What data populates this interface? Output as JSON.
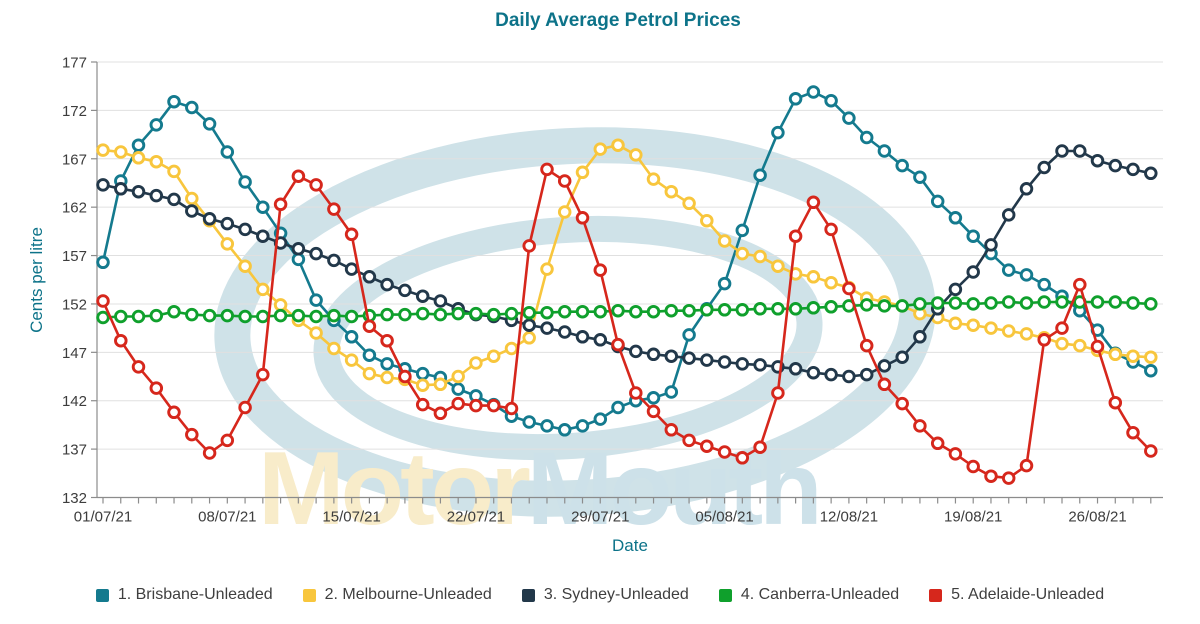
{
  "title": "Daily Average Petrol Prices",
  "watermark": {
    "part1": "Motor",
    "part2": "Mouth",
    "part1_color": "#f8ecca",
    "part2_color": "#cde1e9",
    "swoosh_color": "#cfe2e8"
  },
  "colors": {
    "title_teal": "#0d7389",
    "axis_line": "#8c8c8c",
    "gridline": "#e0e0e0",
    "tick_label": "#3d3d3d",
    "legend_text": "#3f3f3f",
    "background": "#ffffff"
  },
  "chart_data": {
    "type": "line",
    "title": "Daily Average Petrol Prices",
    "xlabel": "Date",
    "ylabel": "Cents per litre",
    "ylim": [
      132,
      177
    ],
    "y_tick_labels": [
      132,
      137,
      142,
      147,
      152,
      157,
      162,
      167,
      172,
      177
    ],
    "grid": "horizontal",
    "legend_position": "bottom",
    "marker": "open-circle",
    "x_start_date": "01/07/21",
    "x_end_date": "29/08/21",
    "x_interval": "daily",
    "num_points": 60,
    "x_tick_days": [
      0,
      7,
      14,
      21,
      28,
      35,
      42,
      49,
      56
    ],
    "x_tick_labels": [
      "01/07/21",
      "08/07/21",
      "15/07/21",
      "22/07/21",
      "29/07/21",
      "05/08/21",
      "12/08/21",
      "19/08/21",
      "26/08/21"
    ],
    "series": [
      {
        "name": "1. Brisbane-Unleaded",
        "color": "#147a8e",
        "values": [
          156.3,
          164.7,
          168.4,
          170.5,
          172.9,
          172.3,
          170.6,
          167.7,
          164.6,
          162.0,
          159.3,
          156.6,
          152.4,
          150.3,
          148.6,
          146.7,
          145.8,
          145.3,
          144.8,
          144.4,
          143.2,
          142.5,
          141.6,
          140.4,
          139.8,
          139.4,
          139.0,
          139.4,
          140.1,
          141.3,
          142.0,
          142.3,
          142.9,
          148.8,
          151.5,
          154.1,
          159.6,
          165.3,
          169.7,
          173.2,
          173.9,
          173.0,
          171.2,
          169.2,
          167.8,
          166.3,
          165.1,
          162.6,
          160.9,
          159.0,
          157.2,
          155.5,
          155.0,
          154.0,
          152.8,
          151.3,
          149.3,
          146.9,
          146.0,
          145.1
        ]
      },
      {
        "name": "2. Melbourne-Unleaded",
        "color": "#f8c63d",
        "values": [
          167.9,
          167.7,
          167.1,
          166.7,
          165.7,
          162.9,
          160.6,
          158.2,
          155.9,
          153.5,
          151.9,
          150.3,
          149.0,
          147.4,
          146.2,
          144.8,
          144.4,
          144.2,
          143.6,
          143.7,
          144.5,
          145.9,
          146.6,
          147.4,
          148.5,
          155.6,
          161.5,
          165.6,
          168.0,
          168.4,
          167.4,
          164.9,
          163.6,
          162.4,
          160.6,
          158.5,
          157.2,
          156.9,
          155.9,
          155.1,
          154.8,
          154.2,
          153.7,
          152.6,
          152.2,
          151.8,
          151.0,
          150.6,
          150.0,
          149.8,
          149.5,
          149.2,
          148.9,
          148.5,
          147.9,
          147.7,
          147.2,
          146.8,
          146.6,
          146.5
        ]
      },
      {
        "name": "3. Sydney-Unleaded",
        "color": "#22384a",
        "values": [
          164.3,
          163.9,
          163.6,
          163.2,
          162.8,
          161.6,
          160.8,
          160.3,
          159.7,
          159.0,
          158.3,
          157.7,
          157.2,
          156.5,
          155.6,
          154.8,
          154.0,
          153.4,
          152.8,
          152.3,
          151.5,
          150.9,
          150.7,
          150.3,
          149.8,
          149.5,
          149.1,
          148.6,
          148.3,
          147.6,
          147.1,
          146.8,
          146.6,
          146.4,
          146.2,
          146.0,
          145.8,
          145.7,
          145.5,
          145.3,
          144.9,
          144.7,
          144.5,
          144.7,
          145.6,
          146.5,
          148.6,
          151.5,
          153.5,
          155.3,
          158.1,
          161.2,
          163.9,
          166.1,
          167.8,
          167.8,
          166.8,
          166.3,
          165.9,
          165.5
        ]
      },
      {
        "name": "4. Canberra-Unleaded",
        "color": "#0fa02c",
        "values": [
          150.6,
          150.7,
          150.7,
          150.8,
          151.2,
          150.9,
          150.8,
          150.8,
          150.7,
          150.7,
          150.8,
          150.8,
          150.7,
          150.8,
          150.7,
          150.8,
          150.9,
          150.9,
          151.0,
          150.9,
          151.0,
          151.0,
          150.9,
          151.0,
          151.1,
          151.1,
          151.2,
          151.2,
          151.2,
          151.3,
          151.2,
          151.2,
          151.3,
          151.3,
          151.4,
          151.4,
          151.4,
          151.5,
          151.5,
          151.5,
          151.6,
          151.7,
          151.8,
          151.9,
          151.8,
          151.8,
          152.0,
          152.1,
          152.1,
          152.0,
          152.1,
          152.2,
          152.1,
          152.2,
          152.2,
          152.2,
          152.2,
          152.2,
          152.1,
          152.0
        ]
      },
      {
        "name": "5. Adelaide-Unleaded",
        "color": "#d6271c",
        "values": [
          152.3,
          148.2,
          145.5,
          143.3,
          140.8,
          138.5,
          136.6,
          137.9,
          141.3,
          144.7,
          162.3,
          165.2,
          164.3,
          161.8,
          159.2,
          149.7,
          148.2,
          144.5,
          141.6,
          140.7,
          141.7,
          141.5,
          141.5,
          141.2,
          158.0,
          165.9,
          164.7,
          160.9,
          155.5,
          147.8,
          142.8,
          140.9,
          139.0,
          137.9,
          137.3,
          136.7,
          136.1,
          137.2,
          142.8,
          159.0,
          162.5,
          159.7,
          153.6,
          147.7,
          143.7,
          141.7,
          139.4,
          137.6,
          136.5,
          135.2,
          134.2,
          134.0,
          135.3,
          148.3,
          149.5,
          154.0,
          147.6,
          141.8,
          138.7,
          136.8
        ]
      }
    ]
  }
}
